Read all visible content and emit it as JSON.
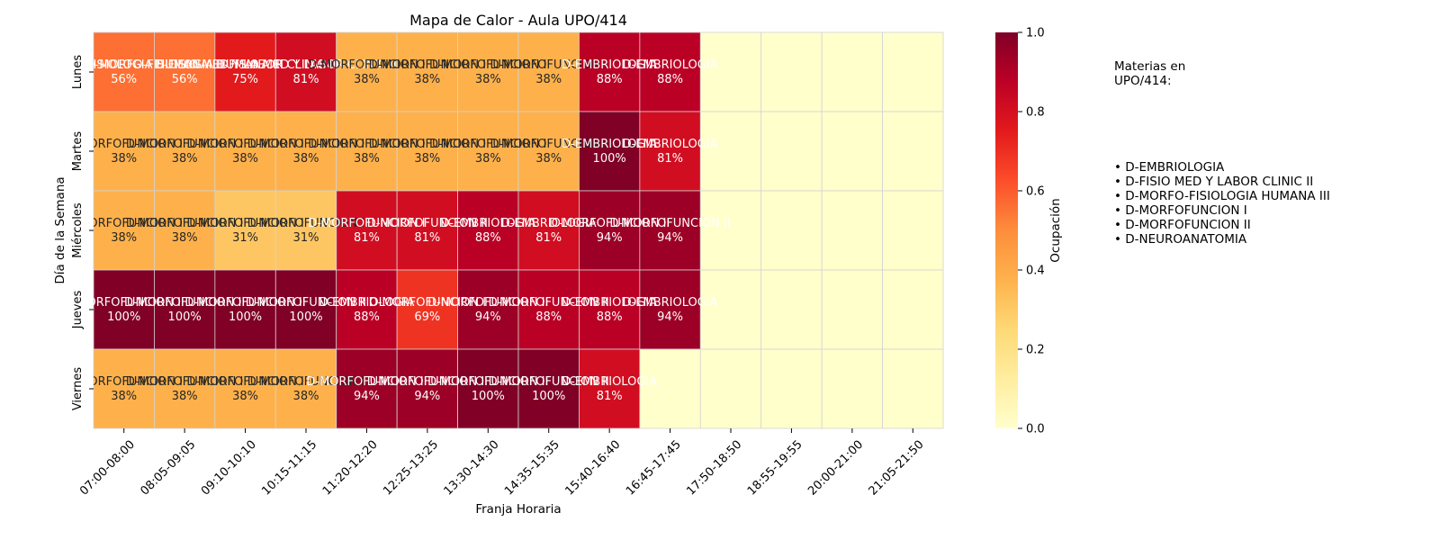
{
  "chart_data": {
    "type": "heatmap",
    "title": "Mapa de Calor - Aula UPO/414",
    "xlabel": "Franja Horaria",
    "ylabel": "Día de la Semana",
    "colorbar_label": "Ocupación",
    "colorbar_ticks": [
      "0.0",
      "0.2",
      "0.4",
      "0.6",
      "0.8",
      "1.0"
    ],
    "vrange": [
      0,
      1
    ],
    "colormap": "YlOrRd",
    "x_categories": [
      "07:00-08:00",
      "08:05-09:05",
      "09:10-10:10",
      "10:15-11:15",
      "11:20-12:20",
      "12:25-13:25",
      "13:30-14:30",
      "14:35-15:35",
      "15:40-16:40",
      "16:45-17:45",
      "17:50-18:50",
      "18:55-19:55",
      "20:00-21:00",
      "21:05-21:50"
    ],
    "y_categories": [
      "Lunes",
      "Martes",
      "Miércoles",
      "Jueves",
      "Viernes"
    ],
    "values": [
      [
        0.56,
        0.56,
        0.75,
        0.81,
        0.38,
        0.38,
        0.38,
        0.38,
        0.88,
        0.88,
        0,
        0,
        0,
        0
      ],
      [
        0.38,
        0.38,
        0.38,
        0.38,
        0.38,
        0.38,
        0.38,
        0.38,
        1.0,
        0.81,
        0,
        0,
        0,
        0
      ],
      [
        0.38,
        0.38,
        0.31,
        0.31,
        0.81,
        0.81,
        0.88,
        0.81,
        0.94,
        0.94,
        0,
        0,
        0,
        0
      ],
      [
        1.0,
        1.0,
        1.0,
        1.0,
        0.88,
        0.69,
        0.94,
        0.88,
        0.88,
        0.94,
        0,
        0,
        0,
        0
      ],
      [
        0.38,
        0.38,
        0.38,
        0.38,
        0.94,
        0.94,
        1.0,
        1.0,
        0.81,
        0,
        0,
        0,
        0,
        0
      ]
    ],
    "cell_labels": [
      [
        {
          "name": "D-MORFO-FISIOLOGIA HUMANA III",
          "pct": "56%"
        },
        {
          "name": "D-MORFO-FISIOLOGIA HUMANA III",
          "pct": "56%"
        },
        {
          "name": "D-FISIO MED Y LABOR CLINIC II",
          "pct": "75%"
        },
        {
          "name": "D-FISIO MED Y LABOR CLINIC II",
          "pct": "81%"
        },
        {
          "name": "D-MORFOFUNCION I",
          "pct": "38%"
        },
        {
          "name": "D-MORFOFUNCION I",
          "pct": "38%"
        },
        {
          "name": "D-MORFOFUNCION I",
          "pct": "38%"
        },
        {
          "name": "D-MORFOFUNCION I",
          "pct": "38%"
        },
        {
          "name": "D-EMBRIOLOGIA",
          "pct": "88%"
        },
        {
          "name": "D-EMBRIOLOGIA",
          "pct": "88%"
        },
        null,
        null,
        null,
        null
      ],
      [
        {
          "name": "D-MORFOFUNCION I",
          "pct": "38%"
        },
        {
          "name": "D-MORFOFUNCION I",
          "pct": "38%"
        },
        {
          "name": "D-MORFOFUNCION I",
          "pct": "38%"
        },
        {
          "name": "D-MORFOFUNCION I",
          "pct": "38%"
        },
        {
          "name": "D-MORFOFUNCION I",
          "pct": "38%"
        },
        {
          "name": "D-MORFOFUNCION I",
          "pct": "38%"
        },
        {
          "name": "D-MORFOFUNCION I",
          "pct": "38%"
        },
        {
          "name": "D-MORFOFUNCION I",
          "pct": "38%"
        },
        {
          "name": "D-EMBRIOLOGIA",
          "pct": "100%"
        },
        {
          "name": "D-EMBRIOLOGIA",
          "pct": "81%"
        },
        null,
        null,
        null,
        null
      ],
      [
        {
          "name": "D-MORFOFUNCION I",
          "pct": "38%"
        },
        {
          "name": "D-MORFOFUNCION I",
          "pct": "38%"
        },
        {
          "name": "D-MORFOFUNCION I",
          "pct": "31%"
        },
        {
          "name": "D-MORFOFUNCION I",
          "pct": "31%"
        },
        {
          "name": "D-MORFOFUNCION I",
          "pct": "81%"
        },
        {
          "name": "D-MORFOFUNCION II",
          "pct": "81%"
        },
        {
          "name": "D-EMBRIOLOGIA",
          "pct": "88%"
        },
        {
          "name": "D-EMBRIOLOGIA",
          "pct": "81%"
        },
        {
          "name": "D-MORFOFUNCION II",
          "pct": "94%"
        },
        {
          "name": "D-MORFOFUNCION II",
          "pct": "94%"
        },
        null,
        null,
        null,
        null
      ],
      [
        {
          "name": "D-MORFOFUNCION II",
          "pct": "100%"
        },
        {
          "name": "D-MORFOFUNCION II",
          "pct": "100%"
        },
        {
          "name": "D-MORFOFUNCION II",
          "pct": "100%"
        },
        {
          "name": "D-MORFOFUNCION II",
          "pct": "100%"
        },
        {
          "name": "D-EMBRIOLOGIA",
          "pct": "88%"
        },
        {
          "name": "D-MORFOFUNCION I",
          "pct": "69%"
        },
        {
          "name": "D-MORFOFUNCION II",
          "pct": "94%"
        },
        {
          "name": "D-MORFOFUNCION II",
          "pct": "88%"
        },
        {
          "name": "D-EMBRIOLOGIA",
          "pct": "88%"
        },
        {
          "name": "D-EMBRIOLOGIA",
          "pct": "94%"
        },
        null,
        null,
        null,
        null
      ],
      [
        {
          "name": "D-MORFOFUNCION I",
          "pct": "38%"
        },
        {
          "name": "D-MORFOFUNCION I",
          "pct": "38%"
        },
        {
          "name": "D-MORFOFUNCION I",
          "pct": "38%"
        },
        {
          "name": "D-MORFOFUNCION I",
          "pct": "38%"
        },
        {
          "name": "D-MORFOFUNCION II",
          "pct": "94%"
        },
        {
          "name": "D-MORFOFUNCION II",
          "pct": "94%"
        },
        {
          "name": "D-MORFOFUNCION II",
          "pct": "100%"
        },
        {
          "name": "D-MORFOFUNCION II",
          "pct": "100%"
        },
        {
          "name": "D-EMBRIOLOGIA",
          "pct": "81%"
        },
        null,
        null,
        null,
        null,
        null
      ]
    ]
  },
  "side_panel": {
    "title": "Materias en\nUPO/414:",
    "items": [
      "• D-EMBRIOLOGIA",
      "• D-FISIO MED Y LABOR CLINIC II",
      "• D-MORFO-FISIOLOGIA HUMANA III",
      "• D-MORFOFUNCION I",
      "• D-MORFOFUNCION II",
      "• D-NEUROANATOMIA"
    ]
  }
}
